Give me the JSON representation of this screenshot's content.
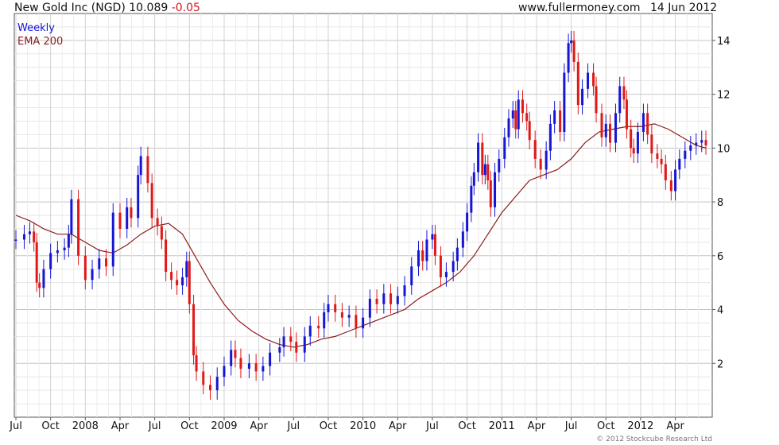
{
  "header": {
    "name": "New Gold Inc (NGD)",
    "price": "10.089",
    "change": "-0.05",
    "website": "www.fullermoney.com",
    "date": "14 Jun 2012"
  },
  "footer": {
    "copyright": "© 2012 Stockcube Research Ltd"
  },
  "colors": {
    "up": "#1515d4",
    "down": "#e01818",
    "ema": "#8b1c1c",
    "grid": "#d9d9d9"
  },
  "chart_data": {
    "type": "line",
    "y_axis_side": "right",
    "ylim": [
      0,
      15
    ],
    "yticks": [
      2,
      4,
      6,
      8,
      10,
      12,
      14
    ],
    "xlim": [
      2007.5,
      2012.47
    ],
    "xticks": [
      {
        "label": "Jul",
        "x": 2007.5
      },
      {
        "label": "Oct",
        "x": 2007.75
      },
      {
        "label": "2008",
        "x": 2008.0
      },
      {
        "label": "Apr",
        "x": 2008.25
      },
      {
        "label": "Jul",
        "x": 2008.5
      },
      {
        "label": "Oct",
        "x": 2008.75
      },
      {
        "label": "2009",
        "x": 2009.0
      },
      {
        "label": "Apr",
        "x": 2009.25
      },
      {
        "label": "Jul",
        "x": 2009.5
      },
      {
        "label": "Oct",
        "x": 2009.75
      },
      {
        "label": "2010",
        "x": 2010.0
      },
      {
        "label": "Apr",
        "x": 2010.25
      },
      {
        "label": "Jul",
        "x": 2010.5
      },
      {
        "label": "Oct",
        "x": 2010.75
      },
      {
        "label": "2011",
        "x": 2011.0
      },
      {
        "label": "Apr",
        "x": 2011.25
      },
      {
        "label": "Jul",
        "x": 2011.5
      },
      {
        "label": "Oct",
        "x": 2011.75
      },
      {
        "label": "2012",
        "x": 2012.0
      },
      {
        "label": "Apr",
        "x": 2012.25
      }
    ],
    "legend": {
      "position": "top-left"
    },
    "series": [
      {
        "name": "Weekly",
        "style": "candlestick",
        "close": [
          [
            2007.5,
            6.6
          ],
          [
            2007.56,
            6.8
          ],
          [
            2007.6,
            6.9
          ],
          [
            2007.63,
            6.5
          ],
          [
            2007.65,
            5.0
          ],
          [
            2007.67,
            4.8
          ],
          [
            2007.7,
            5.5
          ],
          [
            2007.75,
            6.1
          ],
          [
            2007.8,
            6.2
          ],
          [
            2007.85,
            6.3
          ],
          [
            2007.88,
            6.8
          ],
          [
            2007.9,
            8.1
          ],
          [
            2007.95,
            6.0
          ],
          [
            2008.0,
            5.1
          ],
          [
            2008.05,
            5.5
          ],
          [
            2008.1,
            5.9
          ],
          [
            2008.15,
            5.6
          ],
          [
            2008.2,
            7.6
          ],
          [
            2008.25,
            7.0
          ],
          [
            2008.3,
            7.8
          ],
          [
            2008.33,
            7.4
          ],
          [
            2008.38,
            9.0
          ],
          [
            2008.4,
            9.7
          ],
          [
            2008.45,
            8.7
          ],
          [
            2008.48,
            7.4
          ],
          [
            2008.52,
            7.1
          ],
          [
            2008.55,
            6.6
          ],
          [
            2008.58,
            5.4
          ],
          [
            2008.62,
            5.1
          ],
          [
            2008.66,
            4.9
          ],
          [
            2008.7,
            5.2
          ],
          [
            2008.73,
            5.8
          ],
          [
            2008.75,
            4.2
          ],
          [
            2008.78,
            2.3
          ],
          [
            2008.8,
            1.7
          ],
          [
            2008.85,
            1.2
          ],
          [
            2008.9,
            1.0
          ],
          [
            2008.95,
            1.5
          ],
          [
            2009.0,
            1.9
          ],
          [
            2009.05,
            2.5
          ],
          [
            2009.08,
            2.2
          ],
          [
            2009.12,
            1.8
          ],
          [
            2009.18,
            2.0
          ],
          [
            2009.23,
            1.7
          ],
          [
            2009.28,
            1.9
          ],
          [
            2009.33,
            2.4
          ],
          [
            2009.4,
            2.6
          ],
          [
            2009.43,
            3.0
          ],
          [
            2009.48,
            2.8
          ],
          [
            2009.52,
            2.4
          ],
          [
            2009.58,
            3.0
          ],
          [
            2009.62,
            3.4
          ],
          [
            2009.68,
            3.3
          ],
          [
            2009.72,
            3.9
          ],
          [
            2009.75,
            4.2
          ],
          [
            2009.8,
            3.9
          ],
          [
            2009.85,
            3.7
          ],
          [
            2009.9,
            3.8
          ],
          [
            2009.95,
            3.3
          ],
          [
            2010.0,
            3.7
          ],
          [
            2010.05,
            4.4
          ],
          [
            2010.1,
            4.2
          ],
          [
            2010.15,
            4.6
          ],
          [
            2010.2,
            4.2
          ],
          [
            2010.25,
            4.5
          ],
          [
            2010.3,
            4.9
          ],
          [
            2010.35,
            5.6
          ],
          [
            2010.4,
            6.2
          ],
          [
            2010.43,
            5.8
          ],
          [
            2010.46,
            6.6
          ],
          [
            2010.5,
            6.8
          ],
          [
            2010.52,
            6.0
          ],
          [
            2010.56,
            5.2
          ],
          [
            2010.6,
            5.4
          ],
          [
            2010.65,
            5.8
          ],
          [
            2010.68,
            6.3
          ],
          [
            2010.72,
            6.9
          ],
          [
            2010.75,
            7.6
          ],
          [
            2010.78,
            8.6
          ],
          [
            2010.8,
            9.1
          ],
          [
            2010.83,
            10.2
          ],
          [
            2010.86,
            9.0
          ],
          [
            2010.88,
            9.4
          ],
          [
            2010.9,
            8.8
          ],
          [
            2010.92,
            7.8
          ],
          [
            2010.95,
            9.1
          ],
          [
            2010.98,
            9.6
          ],
          [
            2011.02,
            10.4
          ],
          [
            2011.05,
            11.1
          ],
          [
            2011.08,
            11.4
          ],
          [
            2011.1,
            10.7
          ],
          [
            2011.12,
            11.8
          ],
          [
            2011.15,
            11.3
          ],
          [
            2011.18,
            11.0
          ],
          [
            2011.2,
            10.3
          ],
          [
            2011.24,
            9.6
          ],
          [
            2011.28,
            9.2
          ],
          [
            2011.32,
            9.9
          ],
          [
            2011.35,
            10.9
          ],
          [
            2011.38,
            11.4
          ],
          [
            2011.42,
            10.6
          ],
          [
            2011.45,
            12.8
          ],
          [
            2011.48,
            13.9
          ],
          [
            2011.5,
            14.0
          ],
          [
            2011.52,
            13.2
          ],
          [
            2011.55,
            11.6
          ],
          [
            2011.58,
            12.2
          ],
          [
            2011.62,
            12.8
          ],
          [
            2011.66,
            12.3
          ],
          [
            2011.68,
            11.3
          ],
          [
            2011.72,
            10.4
          ],
          [
            2011.75,
            10.9
          ],
          [
            2011.78,
            10.2
          ],
          [
            2011.82,
            11.3
          ],
          [
            2011.85,
            12.3
          ],
          [
            2011.88,
            11.8
          ],
          [
            2011.9,
            10.7
          ],
          [
            2011.93,
            10.0
          ],
          [
            2011.95,
            9.8
          ],
          [
            2011.98,
            10.6
          ],
          [
            2012.02,
            11.3
          ],
          [
            2012.05,
            10.5
          ],
          [
            2012.08,
            9.8
          ],
          [
            2012.12,
            9.6
          ],
          [
            2012.15,
            9.4
          ],
          [
            2012.18,
            8.8
          ],
          [
            2012.22,
            8.4
          ],
          [
            2012.25,
            9.2
          ],
          [
            2012.28,
            9.6
          ],
          [
            2012.32,
            9.9
          ],
          [
            2012.36,
            10.1
          ],
          [
            2012.4,
            10.2
          ],
          [
            2012.44,
            10.3
          ],
          [
            2012.47,
            10.1
          ]
        ]
      },
      {
        "name": "EMA 200",
        "style": "line",
        "points": [
          [
            2007.5,
            7.5
          ],
          [
            2007.6,
            7.3
          ],
          [
            2007.7,
            7.0
          ],
          [
            2007.8,
            6.8
          ],
          [
            2007.9,
            6.8
          ],
          [
            2008.0,
            6.5
          ],
          [
            2008.1,
            6.2
          ],
          [
            2008.2,
            6.1
          ],
          [
            2008.3,
            6.4
          ],
          [
            2008.4,
            6.8
          ],
          [
            2008.5,
            7.1
          ],
          [
            2008.6,
            7.2
          ],
          [
            2008.7,
            6.8
          ],
          [
            2008.8,
            5.9
          ],
          [
            2008.9,
            5.0
          ],
          [
            2009.0,
            4.2
          ],
          [
            2009.1,
            3.6
          ],
          [
            2009.2,
            3.2
          ],
          [
            2009.3,
            2.9
          ],
          [
            2009.4,
            2.7
          ],
          [
            2009.5,
            2.6
          ],
          [
            2009.6,
            2.7
          ],
          [
            2009.7,
            2.9
          ],
          [
            2009.8,
            3.0
          ],
          [
            2009.9,
            3.2
          ],
          [
            2010.0,
            3.4
          ],
          [
            2010.1,
            3.6
          ],
          [
            2010.2,
            3.8
          ],
          [
            2010.3,
            4.0
          ],
          [
            2010.4,
            4.4
          ],
          [
            2010.5,
            4.7
          ],
          [
            2010.6,
            5.0
          ],
          [
            2010.7,
            5.4
          ],
          [
            2010.8,
            6.0
          ],
          [
            2010.9,
            6.8
          ],
          [
            2011.0,
            7.6
          ],
          [
            2011.1,
            8.2
          ],
          [
            2011.2,
            8.8
          ],
          [
            2011.3,
            9.0
          ],
          [
            2011.4,
            9.2
          ],
          [
            2011.5,
            9.6
          ],
          [
            2011.6,
            10.2
          ],
          [
            2011.7,
            10.6
          ],
          [
            2011.8,
            10.7
          ],
          [
            2011.9,
            10.8
          ],
          [
            2012.0,
            10.8
          ],
          [
            2012.1,
            10.9
          ],
          [
            2012.2,
            10.7
          ],
          [
            2012.3,
            10.4
          ],
          [
            2012.4,
            10.1
          ],
          [
            2012.47,
            10.0
          ]
        ]
      }
    ]
  }
}
